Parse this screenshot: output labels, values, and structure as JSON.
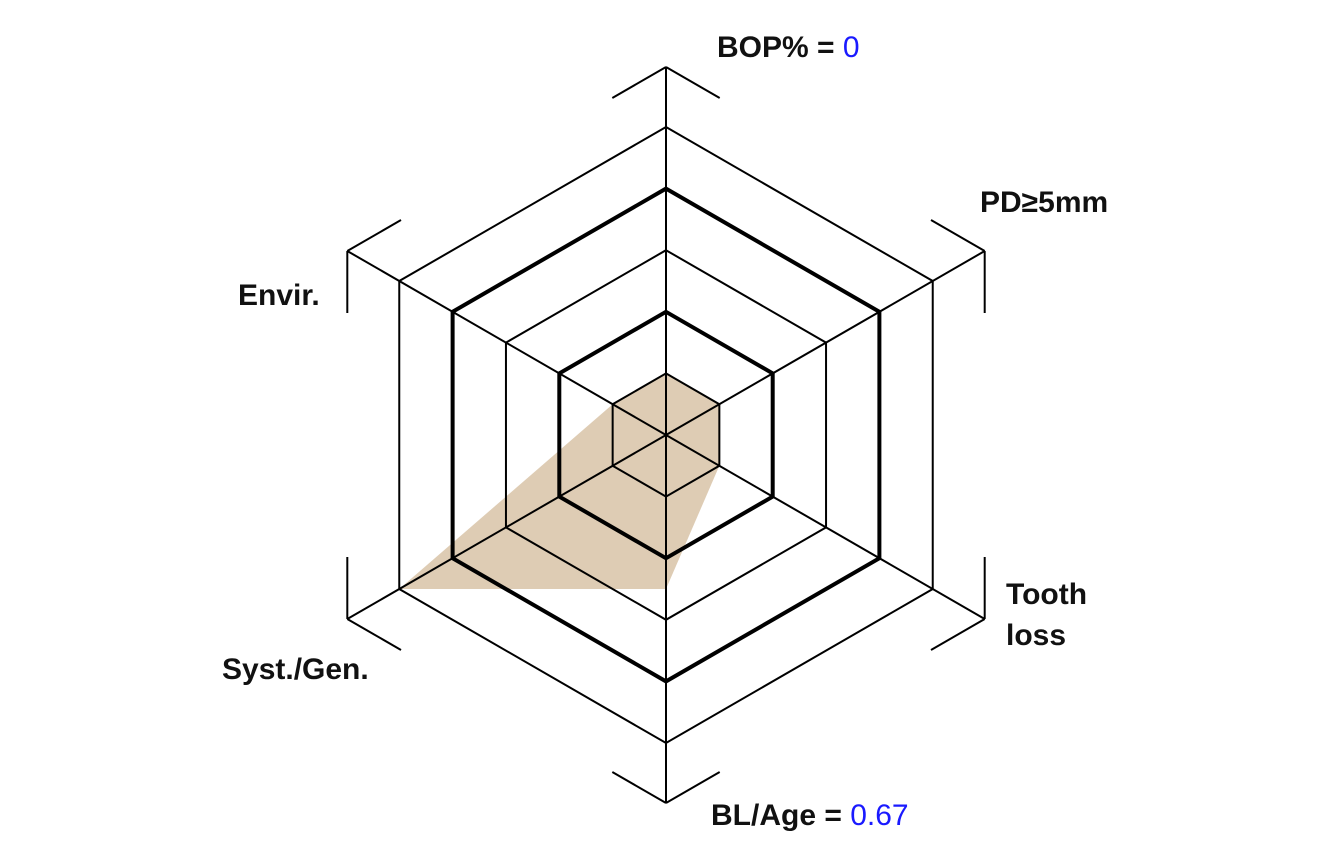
{
  "chart_data": {
    "type": "radar",
    "axes": [
      "BOP%",
      "PD≥5mm",
      "Tooth loss",
      "BL/Age",
      "Syst./Gen.",
      "Envir."
    ],
    "values": [
      1,
      1,
      1,
      2.5,
      5,
      1
    ],
    "rlim": [
      0,
      5
    ],
    "rings": 5,
    "emphasized_rings": [
      2,
      4
    ],
    "fill_color": "#c8aa82",
    "value_text_color": "#1a1aff",
    "labels": {
      "bop": {
        "name": "BOP% = ",
        "value": "0"
      },
      "pd": {
        "name": "PD≥5mm"
      },
      "tooth": {
        "line1": "Tooth",
        "line2": "loss"
      },
      "bl": {
        "name": "BL/Age = ",
        "value": "0.67"
      },
      "syst": {
        "name": "Syst./Gen."
      },
      "envir": {
        "name": "Envir."
      }
    }
  }
}
